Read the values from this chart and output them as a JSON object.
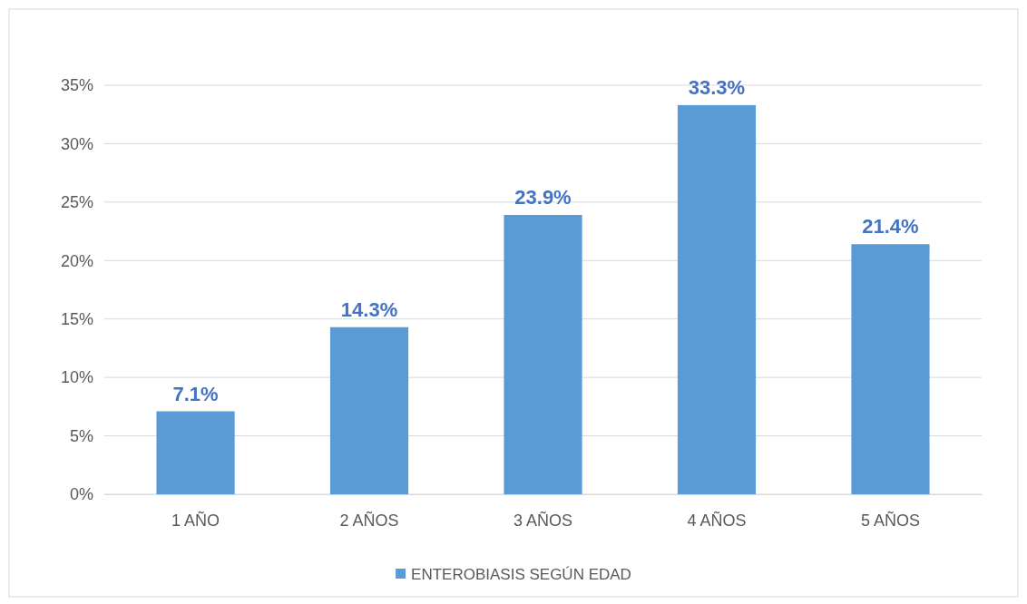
{
  "chart_data": {
    "type": "bar",
    "categories": [
      "1 AÑO",
      "2 AÑOS",
      "3 AÑOS",
      "4 AÑOS",
      "5 AÑOS"
    ],
    "series": [
      {
        "name": "ENTEROBIASIS SEGÚN EDAD",
        "color": "#5b9bd5",
        "values": [
          7.1,
          14.3,
          23.9,
          33.3,
          21.4
        ],
        "value_labels": [
          "7.1%",
          "14.3%",
          "23.9%",
          "33.3%",
          "21.4%"
        ]
      }
    ],
    "ylim": [
      0,
      35
    ],
    "yticks": [
      {
        "value": 0,
        "label": "0%"
      },
      {
        "value": 5,
        "label": "5%"
      },
      {
        "value": 10,
        "label": "10%"
      },
      {
        "value": 15,
        "label": "15%"
      },
      {
        "value": 20,
        "label": "20%"
      },
      {
        "value": 25,
        "label": "25%"
      },
      {
        "value": 30,
        "label": "30%"
      },
      {
        "value": 35,
        "label": "35%"
      }
    ],
    "grid": "y",
    "legend": "bottom"
  }
}
